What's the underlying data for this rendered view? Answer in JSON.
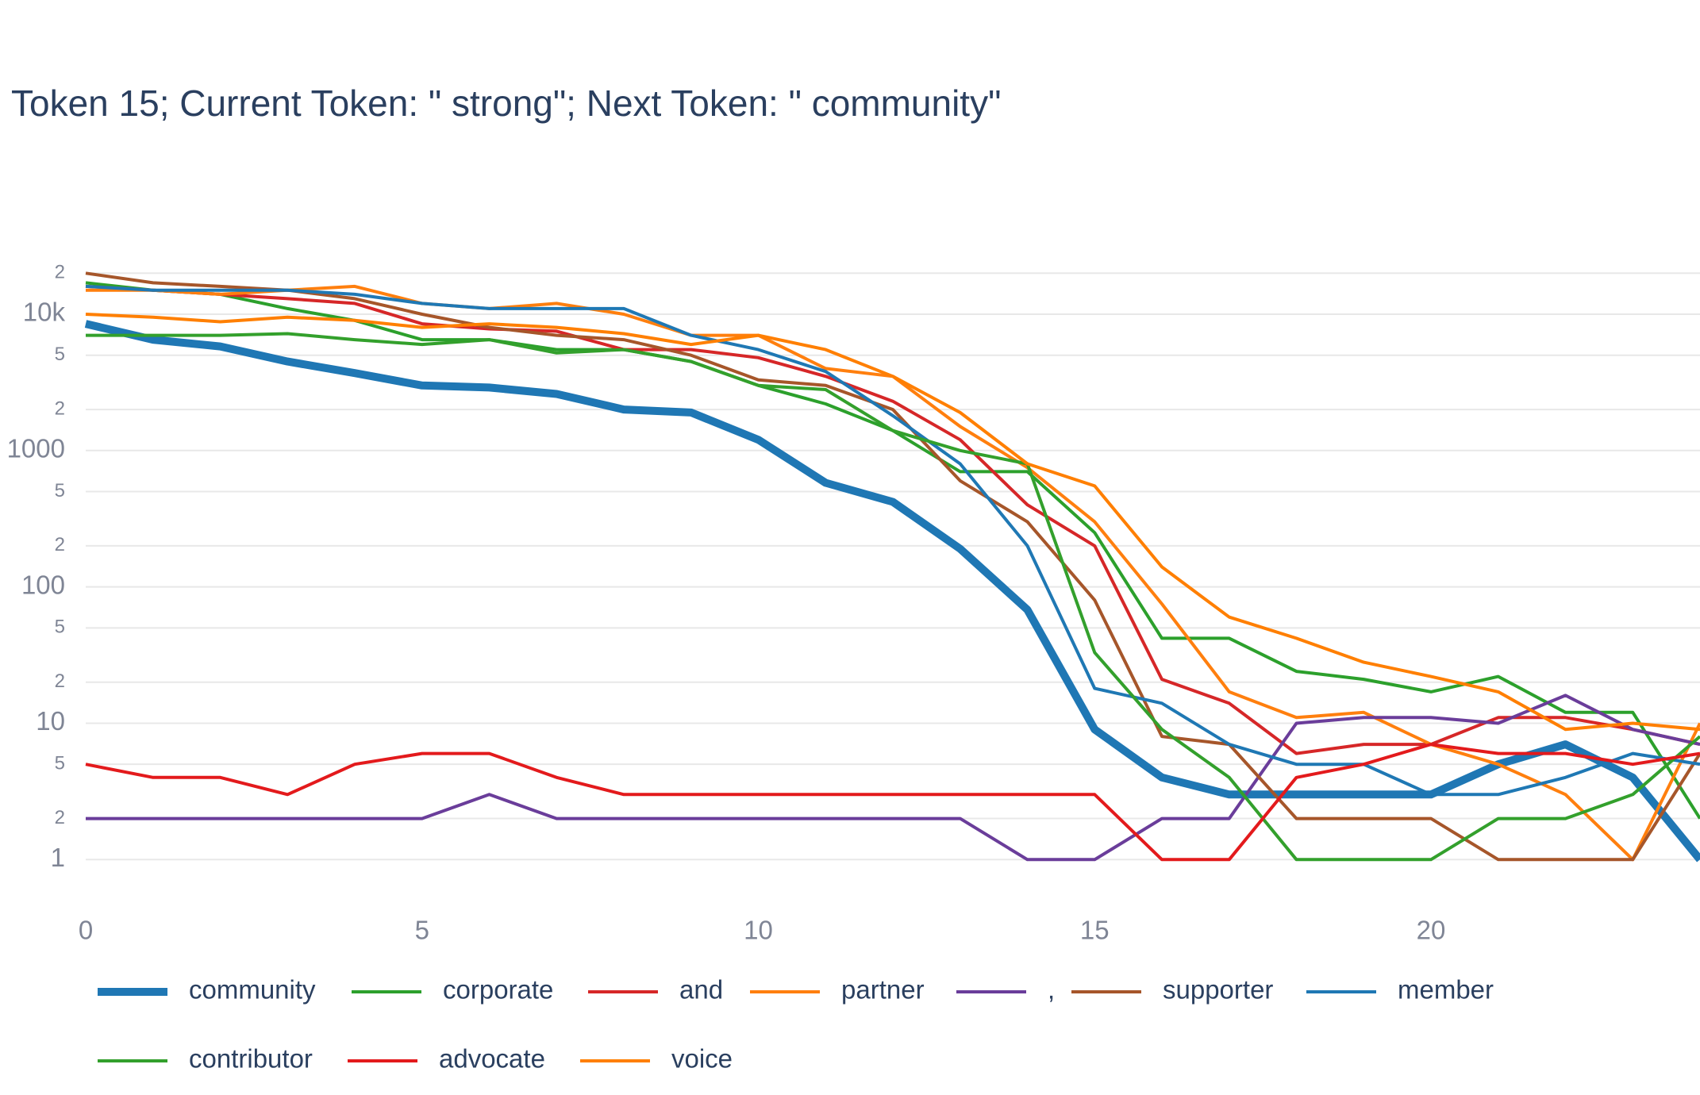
{
  "chart_data": {
    "type": "line",
    "title": "Token 15; Current Token: \" strong\"; Next Token: \" community\"",
    "x": [
      0,
      1,
      2,
      3,
      4,
      5,
      6,
      7,
      8,
      9,
      10,
      11,
      12,
      13,
      14,
      15,
      16,
      17,
      18,
      19,
      20,
      21,
      22,
      23,
      24
    ],
    "xlim": [
      0,
      24
    ],
    "xticks": [
      0,
      5,
      10,
      15,
      20
    ],
    "log_y": true,
    "grid": true,
    "ylim": [
      0.5,
      30000
    ],
    "yticks": [
      1,
      {
        "value": 2,
        "label": "2"
      },
      {
        "value": 5,
        "label": "5"
      },
      10,
      {
        "value": 20,
        "label": "2"
      },
      {
        "value": 50,
        "label": "5"
      },
      100,
      {
        "value": 200,
        "label": "2"
      },
      {
        "value": 500,
        "label": "5"
      },
      1000,
      {
        "value": 2000,
        "label": "2"
      },
      {
        "value": 5000,
        "label": "5"
      },
      {
        "value": 10000,
        "label": "10k"
      },
      {
        "value": 20000,
        "label": "2"
      }
    ],
    "series": [
      {
        "name": "community",
        "color": "#1f77b4",
        "width": 10,
        "values": [
          8500,
          6500,
          5800,
          4500,
          3700,
          3000,
          2900,
          2600,
          2000,
          1900,
          1200,
          580,
          420,
          190,
          68,
          9,
          4,
          3,
          3,
          3,
          3,
          5,
          7,
          4,
          1
        ]
      },
      {
        "name": "corporate",
        "color": "#2ca02c",
        "width": 4,
        "values": [
          17000,
          15000,
          14000,
          11000,
          9000,
          6500,
          6500,
          5500,
          5500,
          4500,
          3000,
          2200,
          1400,
          700,
          700,
          250,
          42,
          42,
          24,
          21,
          17,
          22,
          12,
          12,
          2
        ]
      },
      {
        "name": "and",
        "color": "#d62728",
        "width": 4,
        "values": [
          16000,
          15000,
          14000,
          13000,
          12000,
          8500,
          7800,
          7500,
          5500,
          5500,
          4800,
          3500,
          2300,
          1200,
          400,
          200,
          21,
          14,
          6,
          7,
          7,
          11,
          11,
          9,
          7
        ]
      },
      {
        "name": "partner",
        "color": "#ff7f0e",
        "width": 4,
        "values": [
          15000,
          15000,
          14000,
          15000,
          16000,
          12000,
          11000,
          12000,
          10000,
          7000,
          7000,
          4000,
          3500,
          1500,
          750,
          300,
          75,
          17,
          11,
          12,
          7,
          5,
          3,
          1,
          10
        ]
      },
      {
        "name": ",",
        "color": "#6a3d9a",
        "width": 4,
        "values": [
          2,
          2,
          2,
          2,
          2,
          2,
          3,
          2,
          2,
          2,
          2,
          2,
          2,
          2,
          1,
          1,
          2,
          2,
          10,
          11,
          11,
          10,
          16,
          9,
          7
        ]
      },
      {
        "name": "supporter",
        "color": "#a6562a",
        "width": 4,
        "values": [
          20000,
          17000,
          16000,
          15000,
          13000,
          10000,
          8000,
          7000,
          6500,
          5000,
          3300,
          3000,
          2000,
          600,
          300,
          80,
          8,
          7,
          2,
          2,
          2,
          1,
          1,
          1,
          6
        ]
      },
      {
        "name": "member",
        "color": "#1f78b4",
        "width": 4,
        "values": [
          16000,
          15000,
          15000,
          15000,
          14000,
          12000,
          11000,
          11000,
          11000,
          7000,
          5500,
          3800,
          1800,
          800,
          200,
          18,
          14,
          7,
          5,
          5,
          3,
          3,
          4,
          6,
          5
        ]
      },
      {
        "name": "contributor",
        "color": "#33a02c",
        "width": 4,
        "values": [
          7000,
          7000,
          7000,
          7200,
          6500,
          6000,
          6500,
          5200,
          5500,
          4500,
          3000,
          2800,
          1400,
          1000,
          800,
          33,
          9,
          4,
          1,
          1,
          1,
          2,
          2,
          3,
          8
        ]
      },
      {
        "name": "advocate",
        "color": "#e31a1c",
        "width": 4,
        "values": [
          5,
          4,
          4,
          3,
          5,
          6,
          6,
          4,
          3,
          3,
          3,
          3,
          3,
          3,
          3,
          3,
          1,
          1,
          4,
          5,
          7,
          6,
          6,
          5,
          6
        ]
      },
      {
        "name": "voice",
        "color": "#ff7f00",
        "width": 4,
        "values": [
          10000,
          9500,
          8800,
          9500,
          9000,
          8000,
          8500,
          8000,
          7200,
          6000,
          7000,
          5500,
          3500,
          1900,
          800,
          550,
          140,
          60,
          42,
          28,
          22,
          17,
          9,
          10,
          9
        ]
      }
    ]
  }
}
